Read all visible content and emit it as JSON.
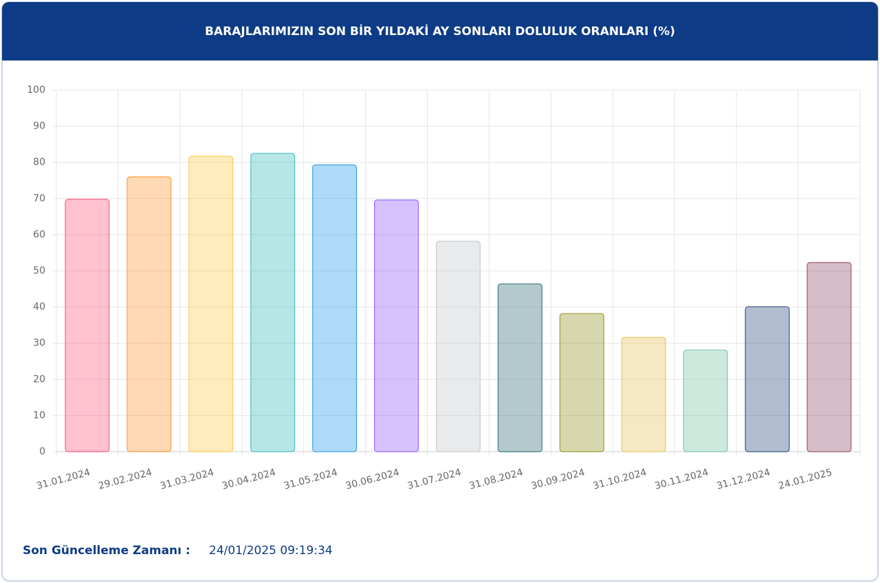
{
  "chart_data": {
    "type": "bar",
    "title": "BARAJLARIMIZIN SON BİR YILDAKİ AY SONLARI DOLULUK ORANLARI (%)",
    "categories": [
      "31.01.2024",
      "29.02.2024",
      "31.03.2024",
      "30.04.2024",
      "31.05.2024",
      "30.06.2024",
      "31.07.2024",
      "31.08.2024",
      "30.09.2024",
      "31.10.2024",
      "30.11.2024",
      "31.12.2024",
      "24.01.2025"
    ],
    "values": [
      69.8,
      76.0,
      81.7,
      82.5,
      79.3,
      69.6,
      58.2,
      46.4,
      38.2,
      31.6,
      28.1,
      40.1,
      52.3
    ],
    "colors": [
      "#ff6384",
      "#ff9f40",
      "#ffcd56",
      "#4bc0c0",
      "#36a2eb",
      "#9966ff",
      "#c9cbcf",
      "#3e7a82",
      "#9a9c35",
      "#e8c66a",
      "#7fc7ac",
      "#3b5a88",
      "#9c5a72"
    ],
    "ylim": [
      0,
      100
    ],
    "yticks": [
      0,
      10,
      20,
      30,
      40,
      50,
      60,
      70,
      80,
      90,
      100
    ],
    "grid": true
  },
  "footer": {
    "label": "Son Güncelleme Zamanı :",
    "value": "24/01/2025 09:19:34"
  }
}
